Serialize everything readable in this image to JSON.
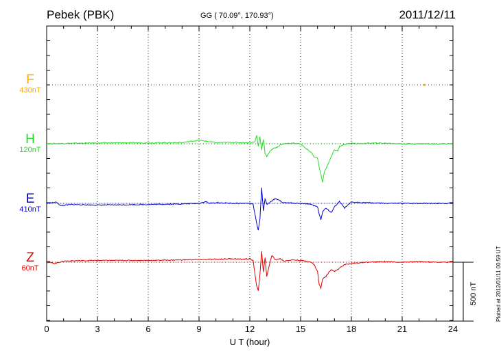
{
  "header": {
    "station": "Pebek (PBK)",
    "coords": "GG ( 70.09°, 170.93°)",
    "date": "2011/12/11"
  },
  "plotted_note": "Plotted at 2012/01/11 00:59 UT",
  "chart_data": {
    "type": "line",
    "title": "Pebek (PBK)",
    "xlabel": "U T (hour)",
    "xlim": [
      0,
      24
    ],
    "xticks": [
      0,
      3,
      6,
      9,
      12,
      15,
      18,
      21,
      24
    ],
    "grid": true,
    "scale_bar_label": "500 nT",
    "scale_bar_nT": 500,
    "units": "nT",
    "series": [
      {
        "name": "F",
        "baseline_label": "430nT",
        "color": "#f5a800",
        "x": [
          22.3
        ],
        "y": [
          0
        ]
      },
      {
        "name": "H",
        "baseline_label": "120nT",
        "color": "#22dd22",
        "x": [
          0,
          2,
          4,
          6,
          8,
          9,
          10,
          11,
          12,
          12.3,
          12.4,
          12.5,
          12.6,
          12.7,
          12.8,
          12.9,
          13.0,
          13.2,
          13.4,
          13.6,
          13.8,
          14,
          14.5,
          15,
          15.3,
          15.6,
          15.8,
          16.0,
          16.1,
          16.2,
          16.3,
          16.4,
          16.6,
          16.8,
          17.0,
          17.2,
          17.3,
          17.5,
          17.8,
          18,
          18.5,
          19,
          20,
          21,
          22,
          23,
          24
        ],
        "y": [
          0,
          5,
          8,
          8,
          10,
          30,
          10,
          12,
          8,
          15,
          70,
          -20,
          60,
          -50,
          40,
          -80,
          -110,
          -60,
          -40,
          -30,
          -10,
          0,
          5,
          0,
          -40,
          -70,
          -110,
          -120,
          -200,
          -260,
          -330,
          -240,
          -180,
          -110,
          -50,
          -60,
          -20,
          -10,
          0,
          5,
          0,
          5,
          5,
          0,
          0,
          0,
          0
        ]
      },
      {
        "name": "E",
        "baseline_label": "410nT",
        "color": "#0000cc",
        "x": [
          0,
          0.6,
          0.8,
          1.5,
          3,
          6,
          8,
          9,
          9.4,
          9.6,
          10,
          11,
          12,
          12.2,
          12.4,
          12.5,
          12.6,
          12.7,
          12.8,
          12.9,
          13.0,
          13.2,
          13.5,
          13.8,
          14,
          15,
          15.5,
          16.0,
          16.1,
          16.2,
          16.3,
          16.5,
          16.8,
          17.0,
          17.3,
          17.6,
          18,
          19,
          20,
          21,
          22,
          23,
          24
        ],
        "y": [
          0,
          10,
          -20,
          -10,
          -15,
          -10,
          -5,
          0,
          15,
          0,
          5,
          0,
          0,
          -10,
          -170,
          -230,
          -130,
          130,
          -60,
          40,
          -10,
          10,
          40,
          20,
          5,
          0,
          -5,
          -30,
          -90,
          -140,
          -70,
          -40,
          -80,
          -30,
          15,
          -40,
          10,
          5,
          0,
          0,
          0,
          0,
          0
        ]
      },
      {
        "name": "Z",
        "baseline_label": "60nT",
        "color": "#dd0000",
        "x": [
          0,
          0.5,
          1,
          3,
          6,
          8,
          10,
          11,
          11.5,
          12,
          12.2,
          12.4,
          12.5,
          12.6,
          12.7,
          12.8,
          12.9,
          13.0,
          13.1,
          13.3,
          13.5,
          13.8,
          14,
          14.5,
          15,
          15.3,
          15.6,
          15.8,
          16.0,
          16.1,
          16.2,
          16.3,
          16.5,
          16.8,
          17.0,
          17.3,
          17.6,
          18,
          19,
          20,
          21,
          22,
          23,
          24
        ],
        "y": [
          0,
          -10,
          10,
          15,
          15,
          20,
          25,
          30,
          25,
          30,
          10,
          -200,
          -240,
          -100,
          90,
          -80,
          40,
          -120,
          -60,
          60,
          20,
          30,
          10,
          20,
          15,
          10,
          0,
          -20,
          -80,
          -190,
          -220,
          -140,
          -120,
          -60,
          -80,
          -50,
          -20,
          -10,
          0,
          5,
          0,
          5,
          0,
          0
        ]
      }
    ]
  },
  "icons": {}
}
